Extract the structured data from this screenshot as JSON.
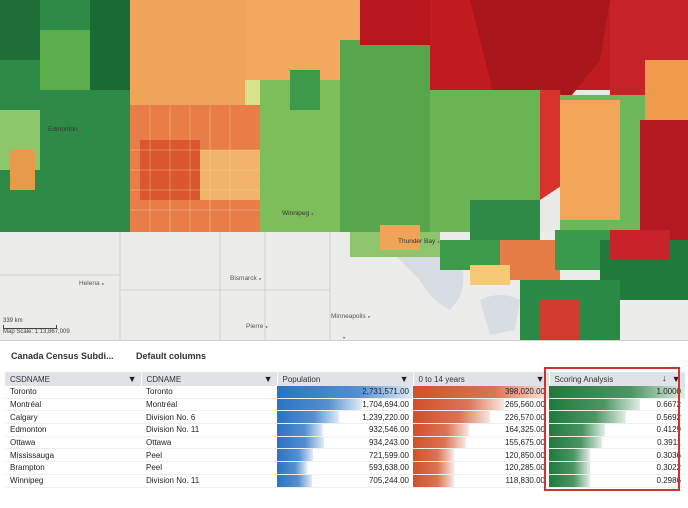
{
  "map": {
    "scale_label": "339 km",
    "scale_text": "Map Scale: 1:13,867,009",
    "cities": [
      "Helena",
      "Bismarck",
      "Pierre",
      "Minneapolis",
      "Thunder Bay",
      "Winnipeg",
      "Edmonton"
    ]
  },
  "table_title": "Canada Census Subdi...",
  "columns_label": "Default columns",
  "columns": [
    "CSDNAME",
    "CDNAME",
    "Population",
    "0 to 14 years",
    "Scoring Analysis"
  ],
  "rows": [
    {
      "csd": "Toronto",
      "cd": "Toronto",
      "pop": "2,731,571.00",
      "kids": "398,020.00",
      "score": "1.0000",
      "pop_v": 2731571,
      "kids_v": 398020,
      "score_v": 1.0
    },
    {
      "csd": "Montréal",
      "cd": "Montréal",
      "pop": "1,704,694.00",
      "kids": "265,560.00",
      "score": "0.6672",
      "pop_v": 1704694,
      "kids_v": 265560,
      "score_v": 0.6672
    },
    {
      "csd": "Calgary",
      "cd": "Division No. 6",
      "pop": "1,239,220.00",
      "kids": "226,570.00",
      "score": "0.5692",
      "pop_v": 1239220,
      "kids_v": 226570,
      "score_v": 0.5692
    },
    {
      "csd": "Edmonton",
      "cd": "Division No. 11",
      "pop": "932,546.00",
      "kids": "164,325.00",
      "score": "0.4129",
      "pop_v": 932546,
      "kids_v": 164325,
      "score_v": 0.4129
    },
    {
      "csd": "Ottawa",
      "cd": "Ottawa",
      "pop": "934,243.00",
      "kids": "155,675.00",
      "score": "0.3911",
      "pop_v": 934243,
      "kids_v": 155675,
      "score_v": 0.3911
    },
    {
      "csd": "Mississauga",
      "cd": "Peel",
      "pop": "721,599.00",
      "kids": "120,850.00",
      "score": "0.3036",
      "pop_v": 721599,
      "kids_v": 120850,
      "score_v": 0.3036
    },
    {
      "csd": "Brampton",
      "cd": "Peel",
      "pop": "593,638.00",
      "kids": "120,285.00",
      "score": "0.3022",
      "pop_v": 593638,
      "kids_v": 120285,
      "score_v": 0.3022
    },
    {
      "csd": "Winnipeg",
      "cd": "Division No. 11",
      "pop": "705,244.00",
      "kids": "118,830.00",
      "score": "0.2986",
      "pop_v": 705244,
      "kids_v": 118830,
      "score_v": 0.2986
    }
  ],
  "colors": {
    "population": "#2a73c4",
    "kids": "#d2502a",
    "score": "#1f7a3c",
    "highlight": "#c8362f"
  }
}
